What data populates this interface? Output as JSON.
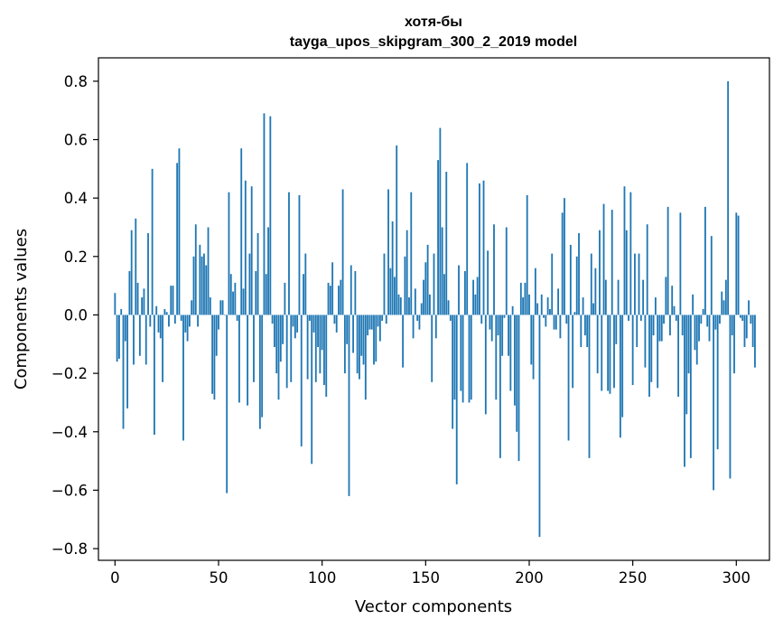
{
  "chart_data": {
    "type": "bar",
    "title": "хотя-бы",
    "subtitle": "tayga_upos_skipgram_300_2_2019 model",
    "xlabel": "Vector components",
    "ylabel": "Components values",
    "xlim": [
      -8,
      316
    ],
    "ylim": [
      -0.84,
      0.88
    ],
    "xticks": [
      0,
      50,
      100,
      150,
      200,
      250,
      300
    ],
    "xtick_labels": [
      "0",
      "50",
      "100",
      "150",
      "200",
      "250",
      "300"
    ],
    "yticks": [
      -0.8,
      -0.6,
      -0.4,
      -0.2,
      0.0,
      0.2,
      0.4,
      0.6,
      0.8
    ],
    "ytick_labels": [
      "−0.8",
      "−0.6",
      "−0.4",
      "−0.2",
      "0.0",
      "0.2",
      "0.4",
      "0.6",
      "0.8"
    ],
    "grid": false,
    "bar_color": "#1f77b4",
    "values": [
      0.075,
      -0.16,
      -0.15,
      0.02,
      -0.39,
      -0.09,
      -0.32,
      0.15,
      0.29,
      -0.17,
      0.33,
      0.11,
      -0.14,
      0.06,
      0.09,
      -0.17,
      0.28,
      -0.04,
      0.5,
      -0.41,
      0.03,
      -0.06,
      -0.08,
      -0.23,
      0.02,
      0.01,
      -0.04,
      0.1,
      0.1,
      -0.03,
      0.52,
      0.57,
      -0.02,
      -0.43,
      -0.06,
      -0.09,
      -0.04,
      0.05,
      0.2,
      0.31,
      -0.04,
      0.24,
      0.2,
      0.21,
      0.17,
      0.3,
      0.06,
      -0.27,
      -0.29,
      -0.14,
      -0.05,
      0.05,
      0.05,
      0.0,
      -0.61,
      0.42,
      0.14,
      0.08,
      0.11,
      -0.02,
      -0.3,
      0.57,
      0.09,
      0.46,
      -0.31,
      0.21,
      0.44,
      -0.23,
      0.15,
      0.28,
      -0.39,
      -0.35,
      0.69,
      0.14,
      0.3,
      0.68,
      -0.03,
      -0.11,
      -0.2,
      -0.29,
      -0.16,
      -0.1,
      0.11,
      -0.25,
      0.42,
      -0.23,
      -0.04,
      -0.08,
      -0.06,
      0.41,
      -0.45,
      0.14,
      0.21,
      -0.22,
      -0.02,
      -0.51,
      -0.06,
      -0.23,
      -0.11,
      -0.2,
      -0.12,
      -0.24,
      -0.28,
      0.11,
      0.1,
      0.18,
      -0.03,
      -0.06,
      0.1,
      0.12,
      0.43,
      -0.2,
      -0.1,
      -0.62,
      0.17,
      -0.13,
      0.15,
      -0.2,
      -0.22,
      -0.14,
      -0.17,
      -0.29,
      -0.07,
      -0.05,
      -0.05,
      -0.17,
      -0.16,
      -0.04,
      -0.09,
      -0.02,
      0.21,
      -0.03,
      0.43,
      0.16,
      0.32,
      0.13,
      0.58,
      0.07,
      0.06,
      -0.18,
      0.2,
      0.29,
      0.06,
      0.42,
      -0.08,
      0.09,
      -0.02,
      -0.05,
      0.04,
      0.12,
      0.18,
      0.24,
      0.07,
      -0.23,
      0.21,
      -0.08,
      0.53,
      0.64,
      0.3,
      0.14,
      0.49,
      0.05,
      -0.02,
      -0.39,
      -0.29,
      -0.58,
      0.17,
      -0.26,
      -0.3,
      0.15,
      0.52,
      -0.3,
      -0.29,
      0.12,
      0.07,
      0.13,
      0.45,
      -0.03,
      0.46,
      -0.34,
      0.22,
      -0.05,
      -0.09,
      0.31,
      -0.29,
      -0.07,
      -0.49,
      -0.14,
      -0.01,
      0.3,
      -0.14,
      -0.26,
      0.03,
      -0.31,
      -0.4,
      -0.5,
      0.11,
      0.06,
      0.11,
      0.41,
      0.07,
      -0.17,
      -0.22,
      0.16,
      0.04,
      -0.76,
      0.07,
      -0.01,
      -0.04,
      0.06,
      0.02,
      0.21,
      -0.05,
      -0.05,
      0.09,
      -0.08,
      0.35,
      0.4,
      -0.03,
      -0.43,
      0.24,
      -0.25,
      0.01,
      0.2,
      0.28,
      -0.11,
      0.06,
      -0.07,
      -0.11,
      -0.49,
      0.21,
      0.04,
      0.16,
      -0.2,
      0.29,
      -0.26,
      0.38,
      0.12,
      -0.26,
      -0.27,
      0.36,
      -0.25,
      -0.1,
      0.12,
      -0.42,
      -0.35,
      0.44,
      0.29,
      -0.02,
      0.42,
      -0.24,
      0.21,
      -0.11,
      0.21,
      -0.02,
      0.12,
      -0.18,
      0.31,
      -0.28,
      -0.23,
      -0.07,
      0.06,
      -0.25,
      -0.09,
      -0.09,
      -0.03,
      0.13,
      0.37,
      -0.07,
      0.1,
      0.03,
      -0.02,
      -0.28,
      0.35,
      -0.07,
      -0.52,
      -0.34,
      -0.2,
      -0.49,
      0.07,
      -0.12,
      -0.17,
      -0.09,
      -0.03,
      0.02,
      0.37,
      -0.04,
      -0.09,
      0.27,
      -0.6,
      -0.05,
      -0.46,
      -0.03,
      0.08,
      0.05,
      0.12,
      0.8,
      -0.56,
      -0.07,
      -0.2,
      0.35,
      0.34,
      -0.01,
      -0.02,
      -0.11,
      -0.08,
      0.05,
      -0.03,
      -0.11,
      -0.18
    ]
  }
}
